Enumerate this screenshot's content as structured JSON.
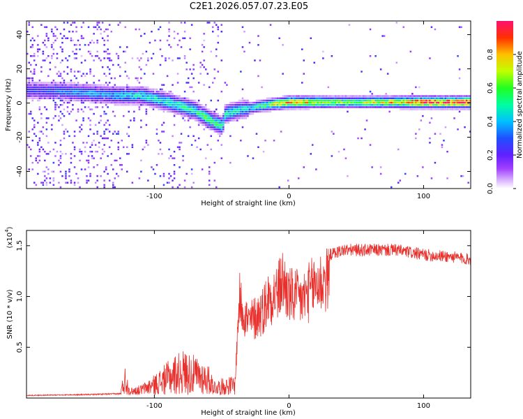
{
  "title": "C2E1.2026.057.07.23.E05",
  "colors": {
    "snr_line": "#e8302c",
    "axis": "#000000",
    "background": "#ffffff"
  },
  "chart_data": [
    {
      "type": "heatmap",
      "xlabel": "Height of straight line (km)",
      "ylabel": "Frequency (Hz)",
      "xlim": [
        -195,
        135
      ],
      "ylim": [
        -50,
        48
      ],
      "xticks": [
        -100,
        0,
        100
      ],
      "yticks": [
        -40,
        -20,
        0,
        20,
        40
      ],
      "colorbar": {
        "label": "Normalized spectral amplitude",
        "range": [
          0,
          1
        ],
        "ticks": [
          0.0,
          0.2,
          0.4,
          0.6,
          0.8
        ],
        "tick_labels": [
          "0.0",
          "0.2",
          "0.4",
          "0.6",
          "0.8"
        ],
        "colormap": [
          "#ffffff",
          "#c890ff",
          "#8a2be2",
          "#3050ff",
          "#00c8ff",
          "#00ff80",
          "#c0ff00",
          "#ffcc00",
          "#ff4000",
          "#ff0060"
        ]
      },
      "ridge": {
        "description_points": [
          [
            -190,
            8
          ],
          [
            -160,
            7
          ],
          [
            -130,
            5
          ],
          [
            -110,
            5
          ],
          [
            -90,
            1
          ],
          [
            -70,
            -4
          ],
          [
            -60,
            -9
          ],
          [
            -50,
            -13
          ],
          [
            -48,
            -6
          ],
          [
            -40,
            -4
          ],
          [
            -20,
            -1
          ],
          [
            0,
            1
          ],
          [
            20,
            1
          ],
          [
            60,
            1
          ],
          [
            100,
            1
          ],
          [
            135,
            1
          ]
        ],
        "peak_amplitude": [
          [
            -190,
            0.25
          ],
          [
            -150,
            0.35
          ],
          [
            -100,
            0.45
          ],
          [
            -60,
            0.55
          ],
          [
            -30,
            0.4
          ],
          [
            0,
            0.85
          ],
          [
            40,
            0.6
          ],
          [
            80,
            0.75
          ],
          [
            100,
            0.95
          ],
          [
            135,
            0.95
          ]
        ]
      }
    },
    {
      "type": "line",
      "xlabel": "Height of straight line (km)",
      "ylabel": "SNR (10 * v/v)",
      "y_multiplier_label": "(x10",
      "y_multiplier_exp": "4",
      "y_multiplier_close": ")",
      "xlim": [
        -195,
        135
      ],
      "ylim": [
        0,
        1.65
      ],
      "xticks": [
        -100,
        0,
        100
      ],
      "yticks": [
        0.5,
        1.0,
        1.5
      ],
      "ytick_labels": [
        "0.5",
        "1.0",
        "1.5"
      ],
      "series": [
        {
          "name": "SNR",
          "envelope": [
            [
              -195,
              0.03
            ],
            [
              -150,
              0.04
            ],
            [
              -125,
              0.05
            ],
            [
              -122,
              0.3
            ],
            [
              -118,
              0.07
            ],
            [
              -110,
              0.1
            ],
            [
              -100,
              0.2
            ],
            [
              -85,
              0.4
            ],
            [
              -78,
              0.45
            ],
            [
              -65,
              0.35
            ],
            [
              -60,
              0.3
            ],
            [
              -55,
              0.15
            ],
            [
              -45,
              0.18
            ],
            [
              -40,
              0.2
            ],
            [
              -37,
              1.25
            ],
            [
              -30,
              0.95
            ],
            [
              -20,
              1.1
            ],
            [
              -15,
              1.28
            ],
            [
              -8,
              1.35
            ],
            [
              -5,
              1.5
            ],
            [
              0,
              1.3
            ],
            [
              10,
              1.25
            ],
            [
              20,
              1.45
            ],
            [
              30,
              1.5
            ],
            [
              40,
              1.55
            ],
            [
              60,
              1.55
            ],
            [
              80,
              1.55
            ],
            [
              100,
              1.5
            ],
            [
              120,
              1.48
            ],
            [
              135,
              1.45
            ]
          ]
        }
      ]
    }
  ]
}
